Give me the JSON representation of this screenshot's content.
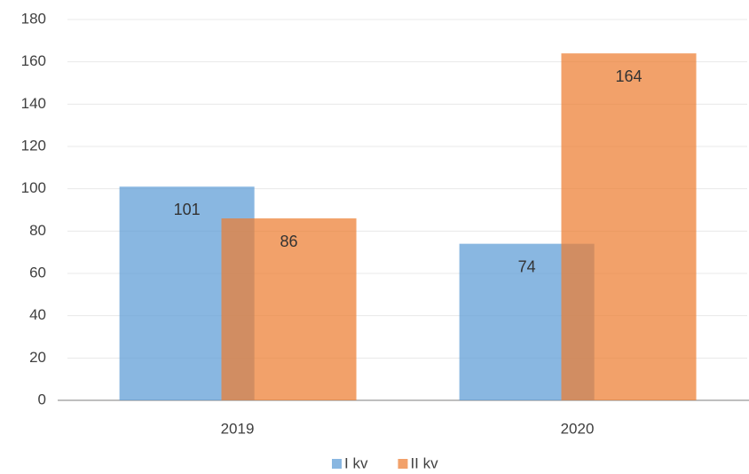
{
  "chart_data": {
    "type": "bar",
    "categories": [
      "2019",
      "2020"
    ],
    "series": [
      {
        "name": "I kv",
        "color": "#5b9bd5",
        "values": [
          101,
          74
        ]
      },
      {
        "name": "II kv",
        "color": "#ed7d31",
        "values": [
          86,
          164
        ]
      }
    ],
    "ylim": [
      0,
      180
    ],
    "yticks": [
      0,
      20,
      40,
      60,
      80,
      100,
      120,
      140,
      160,
      180
    ],
    "grid": true,
    "legend": "bottom"
  }
}
